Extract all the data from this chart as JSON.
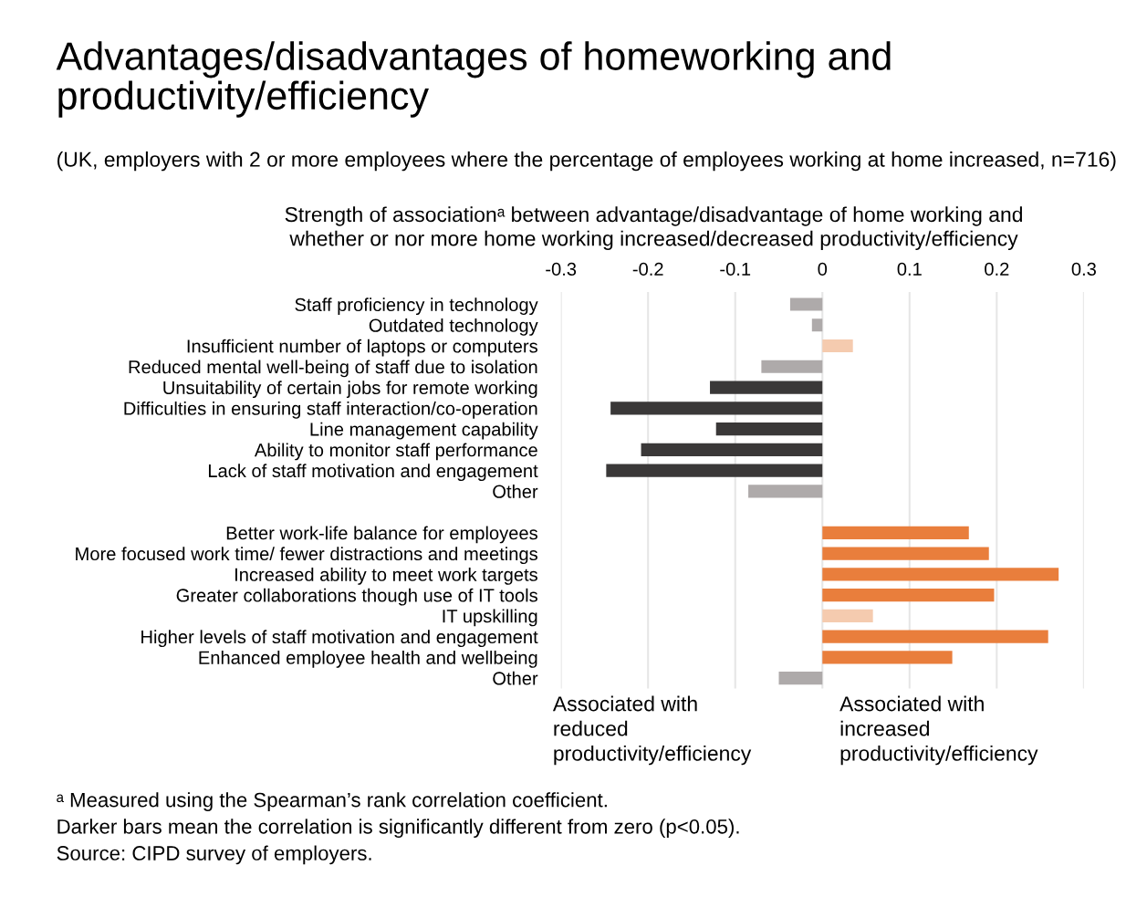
{
  "chart_data": {
    "type": "bar",
    "orientation": "horizontal",
    "title": "Advantages/disadvantages of homeworking and productivity/efficiency",
    "subtitle": "(UK, employers with 2 or more employees where the percentage of employees working at home increased, n=716)",
    "xlabel": "Strength of associationᵃ between advantage/disadvantage of home working and\nwhether or nor more home working increased/decreased productivity/efficiency",
    "categories": [
      "Staff proficiency in technology",
      "Outdated technology",
      "Insufficient number of laptops or computers",
      "Reduced mental well-being of staff due to isolation",
      "Unsuitability of certain jobs for remote working",
      "Difficulties in ensuring staff interaction/co-operation",
      "Line management capability",
      "Ability to monitor staff performance",
      "Lack of staff motivation and engagement",
      "Other",
      null,
      "Better work-life balance for employees",
      "More focused work time/ fewer distractions and meetings",
      "Increased ability to meet work targets",
      "Greater collaborations though use of IT tools",
      "IT upskilling",
      "Higher levels of staff motivation and engagement",
      "Enhanced employee health and wellbeing",
      "Other"
    ],
    "values": [
      -0.037,
      -0.012,
      0.035,
      -0.07,
      -0.129,
      -0.243,
      -0.122,
      -0.208,
      -0.248,
      -0.085,
      null,
      0.168,
      0.191,
      0.271,
      0.197,
      0.058,
      0.259,
      0.149,
      -0.05
    ],
    "colors": [
      "#aeaaaa",
      "#aeaaaa",
      "#f5cbaf",
      "#aeaaaa",
      "#3a3838",
      "#3a3838",
      "#3a3838",
      "#3a3838",
      "#3a3838",
      "#aeaaaa",
      null,
      "#e97e3c",
      "#e97e3c",
      "#e97e3c",
      "#e97e3c",
      "#f5cbaf",
      "#e97e3c",
      "#e97e3c",
      "#aeaaaa"
    ],
    "xlim": [
      -0.3,
      0.3
    ],
    "xticks": [
      -0.3,
      -0.2,
      -0.1,
      0,
      0.1,
      0.2,
      0.3
    ],
    "grid": "x",
    "annotations": [
      "Associated with\nreduced\nproductivity/efficiency",
      "Associated with\nincreased\nproductivity/efficiency",
      "ᵃ Measured using the Spearman’s rank correlation coefficient.",
      "Darker bars mean the correlation is significantly different from zero (p<0.05).",
      "Source: CIPD survey of employers."
    ]
  }
}
